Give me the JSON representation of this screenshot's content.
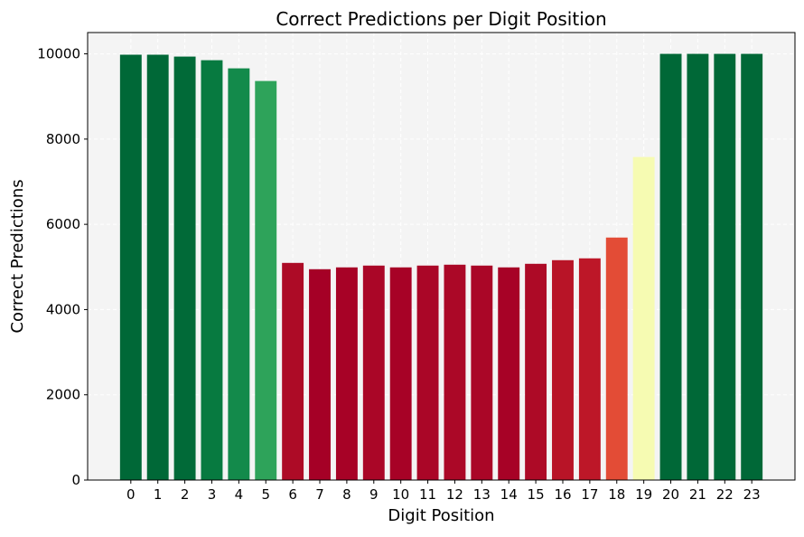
{
  "chart_data": {
    "type": "bar",
    "title": "Correct Predictions per Digit Position",
    "xlabel": "Digit Position",
    "ylabel": "Correct Predictions",
    "categories": [
      "0",
      "1",
      "2",
      "3",
      "4",
      "5",
      "6",
      "7",
      "8",
      "9",
      "10",
      "11",
      "12",
      "13",
      "14",
      "15",
      "16",
      "17",
      "18",
      "19",
      "20",
      "21",
      "22",
      "23"
    ],
    "values": [
      9980,
      9980,
      9936,
      9851,
      9660,
      9363,
      5095,
      4947,
      4990,
      5032,
      4990,
      5032,
      5053,
      5032,
      4990,
      5074,
      5159,
      5202,
      5690,
      7580,
      10000,
      10000,
      10000,
      10000
    ],
    "colors": [
      "#006837",
      "#006837",
      "#016a38",
      "#077a40",
      "#138a4b",
      "#2ea35a",
      "#ad0b26",
      "#a50026",
      "#a70226",
      "#aa0627",
      "#a70226",
      "#aa0627",
      "#ab0827",
      "#aa0627",
      "#a70226",
      "#ad0a26",
      "#b81427",
      "#bd1728",
      "#e34c36",
      "#f6fbb2",
      "#006837",
      "#006837",
      "#006837",
      "#006837"
    ],
    "yticks": [
      0,
      2000,
      4000,
      6000,
      8000,
      10000
    ],
    "ylim": [
      0,
      10500
    ],
    "xlim": [
      -1.6,
      24.6
    ],
    "grid": true,
    "colormap": "RdYlGn",
    "background": "#f4f4f4"
  }
}
